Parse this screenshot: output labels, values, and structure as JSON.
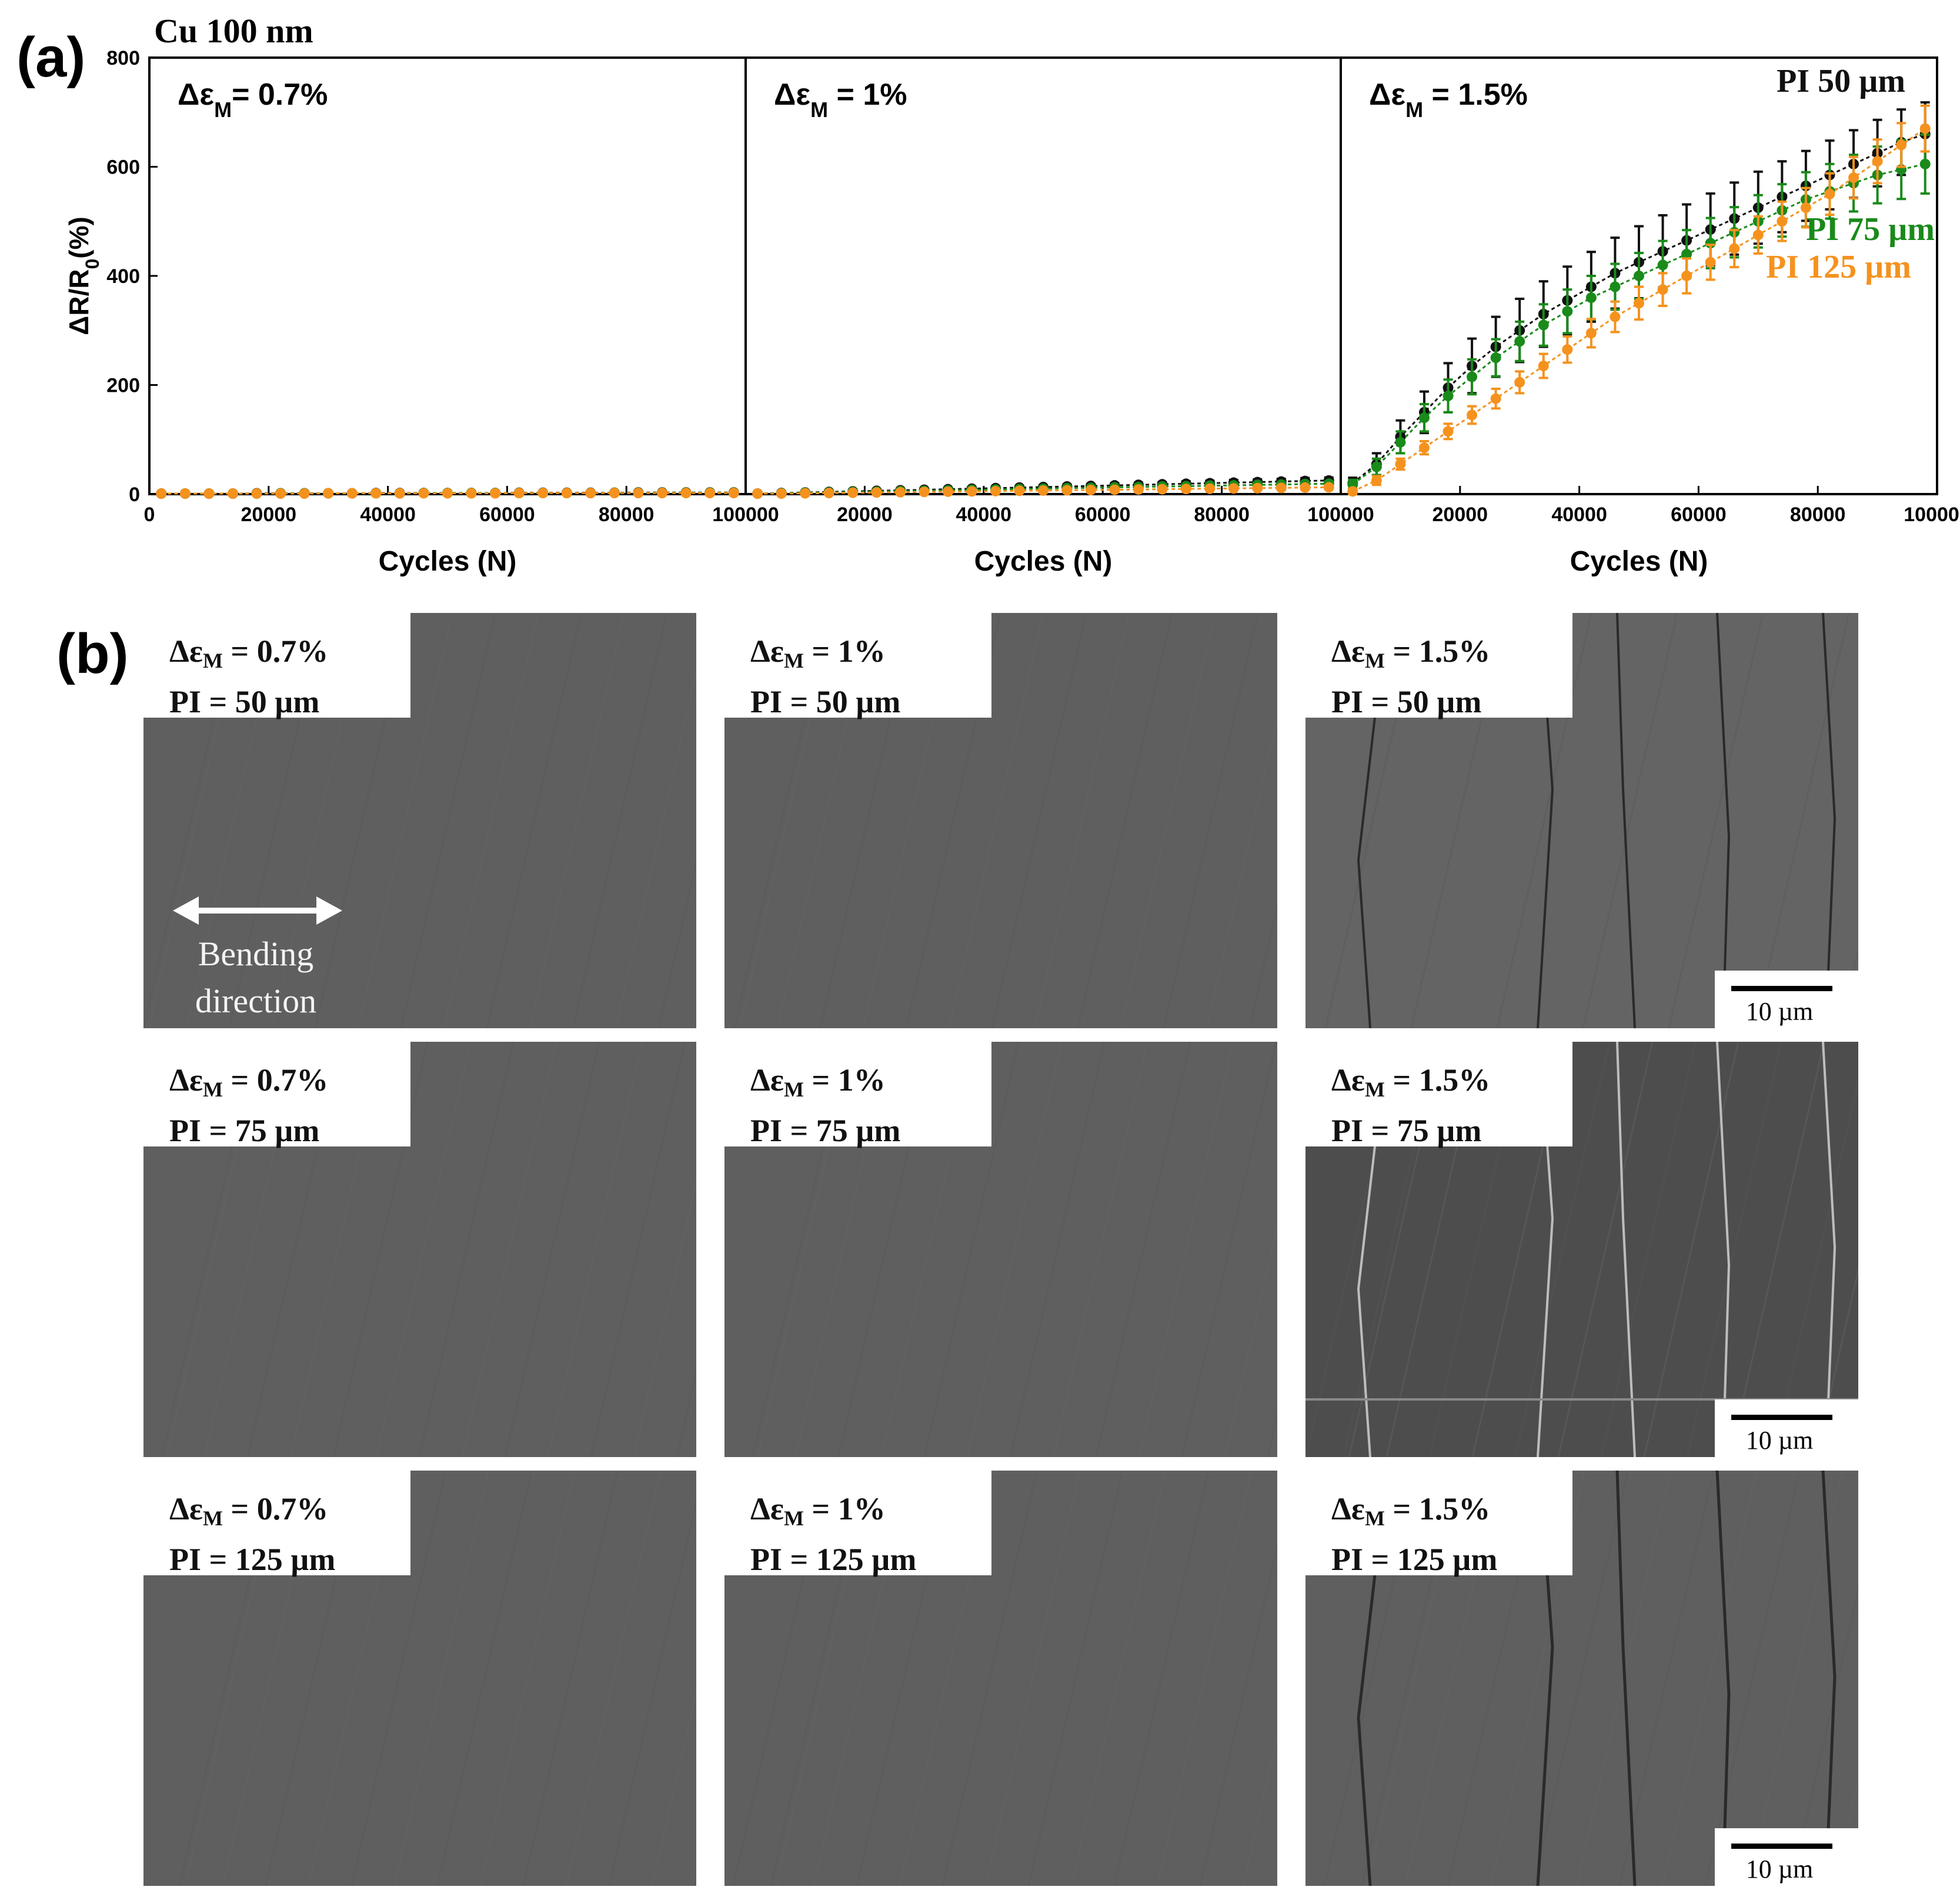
{
  "figure": {
    "panel_a_letter": "(a)",
    "panel_b_letter": "(b)",
    "sample_label": "Cu 100 nm"
  },
  "chart_data": {
    "type": "scatter",
    "ylabel": "ΔR/R0(%)",
    "xlabel": "Cycles (N)",
    "ylim": [
      0,
      800
    ],
    "yticks": [
      0,
      200,
      400,
      600,
      800
    ],
    "xlim": [
      0,
      100000
    ],
    "xticks": [
      0,
      20000,
      40000,
      60000,
      80000,
      100000
    ],
    "colors": {
      "PI 50 µm": "#111111",
      "PI 75 µm": "#1a8a1a",
      "PI 125 µm": "#f5921e"
    },
    "subplots": [
      {
        "label": "ΔεM= 0.7%",
        "series": [
          {
            "name": "PI 50 µm",
            "color": "#111111",
            "x": [
              2000,
              6000,
              10000,
              14000,
              18000,
              22000,
              26000,
              30000,
              34000,
              38000,
              42000,
              46000,
              50000,
              54000,
              58000,
              62000,
              66000,
              70000,
              74000,
              78000,
              82000,
              86000,
              90000,
              94000,
              98000
            ],
            "y": [
              1,
              1,
              1,
              1,
              1.5,
              1.5,
              1.5,
              1.5,
              1.5,
              2,
              2,
              2,
              2,
              2,
              2,
              2.5,
              2.5,
              2.5,
              2.5,
              2.5,
              3,
              3,
              3,
              3,
              3
            ],
            "err": [
              0.5,
              0.5,
              0.5,
              0.5,
              0.5,
              0.5,
              0.5,
              0.5,
              0.5,
              0.5,
              0.5,
              0.5,
              0.5,
              0.5,
              0.5,
              0.5,
              0.5,
              0.5,
              0.5,
              0.5,
              0.5,
              0.5,
              0.5,
              0.5,
              0.5
            ]
          },
          {
            "name": "PI 75 µm",
            "color": "#1a8a1a",
            "x": [
              2000,
              6000,
              10000,
              14000,
              18000,
              22000,
              26000,
              30000,
              34000,
              38000,
              42000,
              46000,
              50000,
              54000,
              58000,
              62000,
              66000,
              70000,
              74000,
              78000,
              82000,
              86000,
              90000,
              94000,
              98000
            ],
            "y": [
              1,
              1,
              1,
              1,
              1,
              1.5,
              1.5,
              1.5,
              1.5,
              1.5,
              1.5,
              2,
              2,
              2,
              2,
              2,
              2,
              2,
              2,
              2.5,
              2.5,
              2.5,
              2.5,
              2.5,
              2.5
            ],
            "err": [
              0.5,
              0.5,
              0.5,
              0.5,
              0.5,
              0.5,
              0.5,
              0.5,
              0.5,
              0.5,
              0.5,
              0.5,
              0.5,
              0.5,
              0.5,
              0.5,
              0.5,
              0.5,
              0.5,
              0.5,
              0.5,
              0.5,
              0.5,
              0.5,
              0.5
            ]
          },
          {
            "name": "PI 125 µm",
            "color": "#f5921e",
            "x": [
              2000,
              6000,
              10000,
              14000,
              18000,
              22000,
              26000,
              30000,
              34000,
              38000,
              42000,
              46000,
              50000,
              54000,
              58000,
              62000,
              66000,
              70000,
              74000,
              78000,
              82000,
              86000,
              90000,
              94000,
              98000
            ],
            "y": [
              1,
              1,
              1,
              1,
              1,
              1,
              1,
              1.5,
              1.5,
              1.5,
              1.5,
              1.5,
              1.5,
              1.5,
              1.5,
              2,
              2,
              2,
              2,
              2,
              2,
              2,
              2,
              2,
              2
            ],
            "err": [
              0.5,
              0.5,
              0.5,
              0.5,
              0.5,
              0.5,
              0.5,
              0.5,
              0.5,
              0.5,
              0.5,
              0.5,
              0.5,
              0.5,
              0.5,
              0.5,
              0.5,
              0.5,
              0.5,
              0.5,
              0.5,
              0.5,
              0.5,
              0.5,
              0.5
            ]
          }
        ]
      },
      {
        "label": "ΔεM = 1%",
        "series": [
          {
            "name": "PI 50 µm",
            "color": "#111111",
            "x": [
              2000,
              6000,
              10000,
              14000,
              18000,
              22000,
              26000,
              30000,
              34000,
              38000,
              42000,
              46000,
              50000,
              54000,
              58000,
              62000,
              66000,
              70000,
              74000,
              78000,
              82000,
              86000,
              90000,
              94000,
              98000
            ],
            "y": [
              1,
              2,
              3,
              4,
              5,
              6,
              7,
              8,
              9,
              10,
              11,
              12,
              13,
              14,
              15,
              16,
              17,
              18,
              19,
              20,
              21,
              22,
              23,
              24,
              25
            ],
            "err": [
              1,
              1,
              1,
              1.5,
              1.5,
              2,
              2,
              2,
              2.5,
              2.5,
              3,
              3,
              3,
              3.5,
              3.5,
              4,
              4,
              4,
              4.5,
              4.5,
              5,
              5,
              5,
              5.5,
              5.5
            ]
          },
          {
            "name": "PI 75 µm",
            "color": "#1a8a1a",
            "x": [
              2000,
              6000,
              10000,
              14000,
              18000,
              22000,
              26000,
              30000,
              34000,
              38000,
              42000,
              46000,
              50000,
              54000,
              58000,
              62000,
              66000,
              70000,
              74000,
              78000,
              82000,
              86000,
              90000,
              94000,
              98000
            ],
            "y": [
              1,
              1.5,
              2.5,
              3,
              4,
              4.5,
              5.5,
              6,
              7,
              8,
              8.5,
              9.5,
              10,
              11,
              11.5,
              12.5,
              13,
              14,
              14.5,
              15.5,
              16,
              17,
              17.5,
              18.5,
              19
            ],
            "err": [
              1,
              1,
              1,
              1,
              1.5,
              1.5,
              1.5,
              2,
              2,
              2,
              2.5,
              2.5,
              2.5,
              3,
              3,
              3,
              3.5,
              3.5,
              3.5,
              4,
              4,
              4,
              4.5,
              4.5,
              4.5
            ]
          },
          {
            "name": "PI 125 µm",
            "color": "#f5921e",
            "x": [
              2000,
              6000,
              10000,
              14000,
              18000,
              22000,
              26000,
              30000,
              34000,
              38000,
              42000,
              46000,
              50000,
              54000,
              58000,
              62000,
              66000,
              70000,
              74000,
              78000,
              82000,
              86000,
              90000,
              94000,
              98000
            ],
            "y": [
              1,
              1,
              1.5,
              2,
              2.5,
              3,
              3.5,
              4,
              4.5,
              5,
              5.5,
              6,
              6.5,
              7,
              7.5,
              8,
              8.5,
              9,
              9.5,
              10,
              10.5,
              11,
              11.5,
              12,
              12.5
            ],
            "err": [
              0.5,
              0.5,
              1,
              1,
              1,
              1,
              1.5,
              1.5,
              1.5,
              1.5,
              2,
              2,
              2,
              2,
              2.5,
              2.5,
              2.5,
              2.5,
              3,
              3,
              3,
              3,
              3.5,
              3.5,
              3.5
            ]
          }
        ]
      },
      {
        "label": "ΔεM = 1.5%",
        "series": [
          {
            "name": "PI 50 µm",
            "color": "#111111",
            "x": [
              2000,
              6000,
              10000,
              14000,
              18000,
              22000,
              26000,
              30000,
              34000,
              38000,
              42000,
              46000,
              50000,
              54000,
              58000,
              62000,
              66000,
              70000,
              74000,
              78000,
              82000,
              86000,
              90000,
              94000,
              98000
            ],
            "y": [
              20,
              55,
              105,
              150,
              195,
              235,
              270,
              300,
              330,
              355,
              380,
              405,
              425,
              445,
              465,
              485,
              505,
              525,
              545,
              565,
              585,
              605,
              625,
              645,
              660
            ],
            "err": [
              10,
              20,
              30,
              38,
              45,
              50,
              55,
              58,
              60,
              62,
              64,
              65,
              66,
              66,
              66,
              66,
              66,
              66,
              65,
              64,
              63,
              62,
              61,
              60,
              58
            ]
          },
          {
            "name": "PI 75 µm",
            "color": "#1a8a1a",
            "x": [
              2000,
              6000,
              10000,
              14000,
              18000,
              22000,
              26000,
              30000,
              34000,
              38000,
              42000,
              46000,
              50000,
              54000,
              58000,
              62000,
              66000,
              70000,
              74000,
              78000,
              82000,
              86000,
              90000,
              94000,
              98000
            ],
            "y": [
              18,
              50,
              95,
              140,
              180,
              215,
              250,
              280,
              310,
              335,
              360,
              380,
              400,
              420,
              440,
              460,
              480,
              500,
              520,
              540,
              555,
              570,
              585,
              595,
              605
            ],
            "err": [
              8,
              15,
              20,
              25,
              30,
              32,
              34,
              36,
              38,
              40,
              40,
              42,
              42,
              44,
              44,
              46,
              46,
              48,
              48,
              50,
              50,
              52,
              52,
              54,
              54
            ]
          },
          {
            "name": "PI 125 µm",
            "color": "#f5921e",
            "x": [
              2000,
              6000,
              10000,
              14000,
              18000,
              22000,
              26000,
              30000,
              34000,
              38000,
              42000,
              46000,
              50000,
              54000,
              58000,
              62000,
              66000,
              70000,
              74000,
              78000,
              82000,
              86000,
              90000,
              94000,
              98000
            ],
            "y": [
              5,
              25,
              55,
              85,
              115,
              145,
              175,
              205,
              235,
              265,
              295,
              325,
              350,
              375,
              400,
              425,
              450,
              475,
              500,
              525,
              550,
              580,
              610,
              640,
              670
            ],
            "err": [
              5,
              8,
              10,
              12,
              14,
              16,
              18,
              20,
              22,
              24,
              26,
              28,
              30,
              30,
              32,
              32,
              34,
              34,
              36,
              36,
              38,
              38,
              40,
              40,
              42
            ]
          }
        ]
      }
    ],
    "legend": {
      "position": "top-right",
      "labels": [
        "PI 50 µm",
        "PI 75 µm",
        "PI 125 µm"
      ]
    }
  },
  "sem_grid": {
    "bending_label_line1": "Bending",
    "bending_label_line2": "direction",
    "scale_bar": "10 µm",
    "eps_prefix": "Δε",
    "eps_sub": "M",
    "rows": [
      {
        "pi": "PI = 50 µm",
        "cols": [
          "= 0.7%",
          "= 1%",
          "= 1.5%"
        ]
      },
      {
        "pi": "PI = 75 µm",
        "cols": [
          "= 0.7%",
          "= 1%",
          "= 1.5%"
        ]
      },
      {
        "pi": "PI = 125 µm",
        "cols": [
          "= 0.7%",
          "= 1%",
          "= 1.5%"
        ]
      }
    ]
  }
}
